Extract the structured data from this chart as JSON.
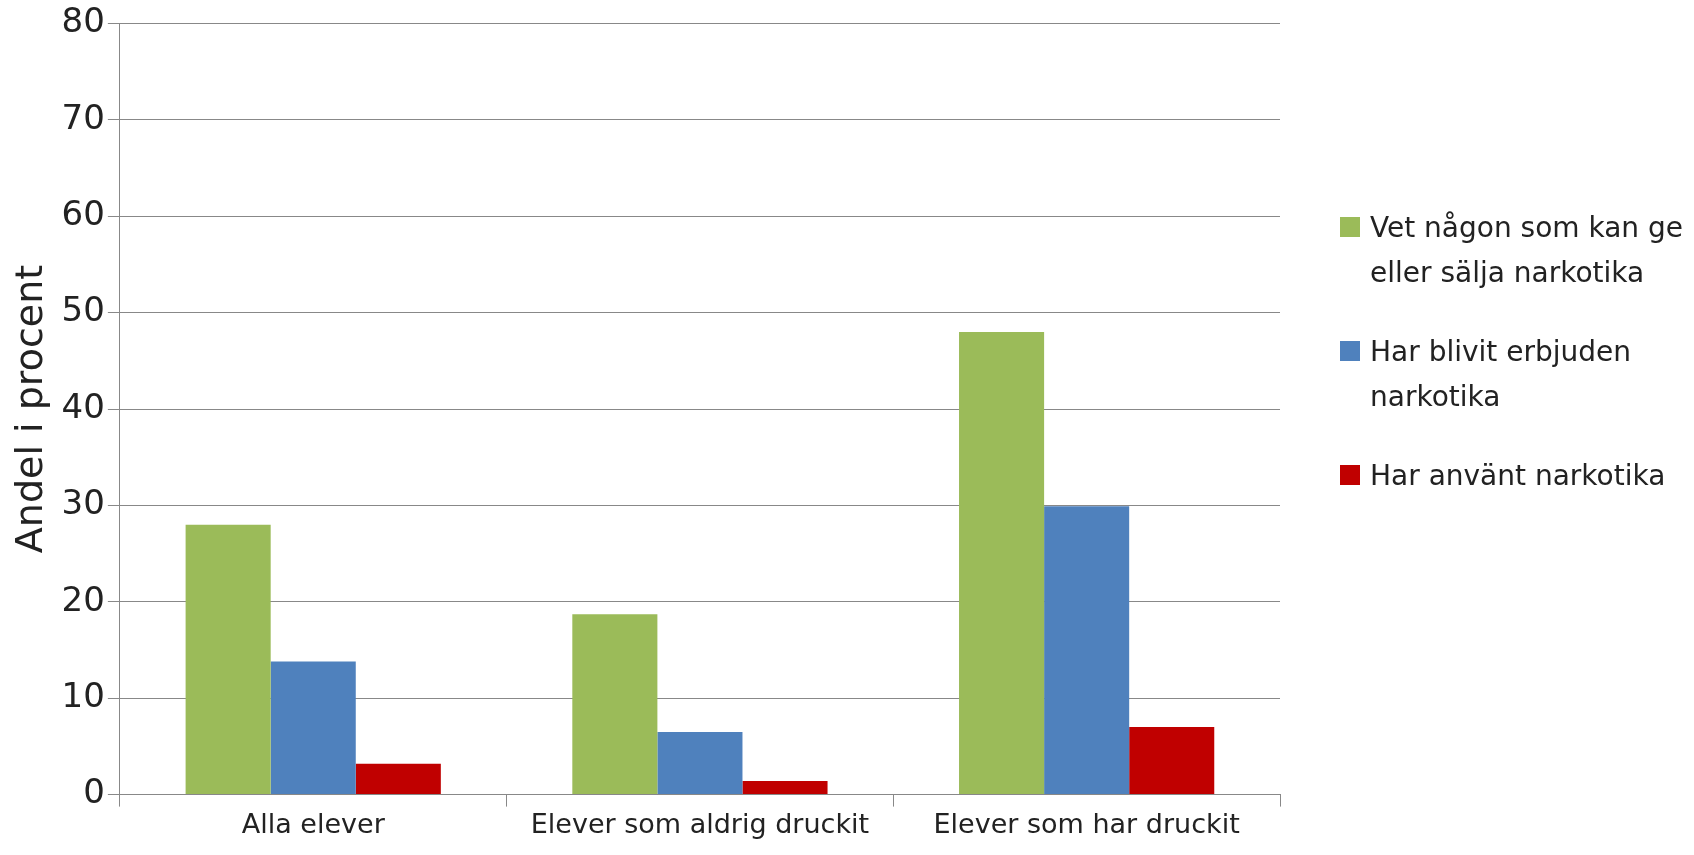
{
  "chart_data": {
    "type": "bar",
    "ylabel": "Andel i procent",
    "categories": [
      "Alla elever",
      "Elever som aldrig druckit",
      "Elever som har druckit"
    ],
    "series": [
      {
        "name": "Vet någon som kan ge eller sälja narkotika",
        "color": "#9bbb59",
        "values": [
          28,
          18.7,
          48
        ]
      },
      {
        "name": "Har blivit erbjuden narkotika",
        "color": "#4f81bd",
        "values": [
          13.8,
          6.5,
          29.9
        ]
      },
      {
        "name": "Har använt narkotika",
        "color": "#c00000",
        "values": [
          3.2,
          1.4,
          7
        ]
      }
    ],
    "ylim": [
      0,
      80
    ],
    "yticks": [
      0,
      10,
      20,
      30,
      40,
      50,
      60,
      70,
      80
    ],
    "grid": "y",
    "legend": "right"
  }
}
